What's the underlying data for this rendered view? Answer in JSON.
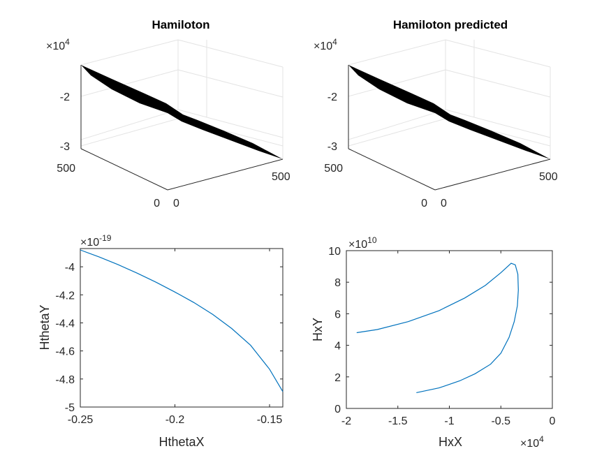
{
  "chart_data": [
    {
      "type": "surface",
      "title": "Hamiloton",
      "z_exponent": {
        "times": "×10",
        "power": "4"
      },
      "z_ticks": [
        {
          "value": -2,
          "label": "-2"
        },
        {
          "value": -3,
          "label": "-3"
        }
      ],
      "y_ticks": [
        {
          "value": 0,
          "label": "0"
        },
        {
          "value": 500,
          "label": "500"
        }
      ],
      "x_ticks": [
        {
          "value": 0,
          "label": "0"
        },
        {
          "value": 500,
          "label": "500"
        }
      ],
      "surface_color": "#000000"
    },
    {
      "type": "surface",
      "title": "Hamiloton predicted",
      "z_exponent": {
        "times": "×10",
        "power": "4"
      },
      "z_ticks": [
        {
          "value": -2,
          "label": "-2"
        },
        {
          "value": -3,
          "label": "-3"
        }
      ],
      "y_ticks": [
        {
          "value": 0,
          "label": "0"
        },
        {
          "value": 500,
          "label": "500"
        }
      ],
      "x_ticks": [
        {
          "value": 0,
          "label": "0"
        },
        {
          "value": 500,
          "label": "500"
        }
      ],
      "surface_color": "#000000"
    },
    {
      "type": "line",
      "xlabel": "HthetaX",
      "ylabel": "HthetaY",
      "xlim": [
        -0.25,
        -0.143
      ],
      "ylim": [
        -5.0,
        -3.87
      ],
      "y_exponent": {
        "times": "×10",
        "power": "-19"
      },
      "x_ticks": [
        {
          "value": -0.25,
          "label": "-0.25"
        },
        {
          "value": -0.2,
          "label": "-0.2"
        },
        {
          "value": -0.15,
          "label": "-0.15"
        }
      ],
      "y_ticks": [
        {
          "value": -4,
          "label": "-4"
        },
        {
          "value": -4.2,
          "label": "-4.2"
        },
        {
          "value": -4.4,
          "label": "-4.4"
        },
        {
          "value": -4.6,
          "label": "-4.6"
        },
        {
          "value": -4.8,
          "label": "-4.8"
        },
        {
          "value": -5,
          "label": "-5"
        }
      ],
      "series": [
        {
          "color": "#0072bd",
          "x": [
            -0.25,
            -0.24,
            -0.23,
            -0.22,
            -0.21,
            -0.2,
            -0.19,
            -0.18,
            -0.17,
            -0.16,
            -0.15,
            -0.143
          ],
          "y": [
            -3.88,
            -3.93,
            -3.985,
            -4.045,
            -4.11,
            -4.18,
            -4.255,
            -4.34,
            -4.44,
            -4.56,
            -4.73,
            -4.89
          ]
        }
      ]
    },
    {
      "type": "line",
      "xlabel": "HxX",
      "ylabel": "HxY",
      "xlim": [
        -2,
        0
      ],
      "ylim": [
        0,
        10
      ],
      "x_exponent": {
        "times": "×10",
        "power": "4"
      },
      "y_exponent": {
        "times": "×10",
        "power": "10"
      },
      "x_ticks": [
        {
          "value": -2,
          "label": "-2"
        },
        {
          "value": -1.5,
          "label": "-1.5"
        },
        {
          "value": -1,
          "label": "-1"
        },
        {
          "value": -0.5,
          "label": "-0.5"
        },
        {
          "value": 0,
          "label": "0"
        }
      ],
      "y_ticks": [
        {
          "value": 0,
          "label": "0"
        },
        {
          "value": 2,
          "label": "2"
        },
        {
          "value": 4,
          "label": "4"
        },
        {
          "value": 6,
          "label": "6"
        },
        {
          "value": 8,
          "label": "8"
        },
        {
          "value": 10,
          "label": "10"
        }
      ],
      "series": [
        {
          "color": "#0072bd",
          "x": [
            -1.32,
            -1.1,
            -0.9,
            -0.75,
            -0.6,
            -0.5,
            -0.42,
            -0.37,
            -0.34,
            -0.33,
            -0.335,
            -0.36,
            -0.4,
            -0.5,
            -0.65,
            -0.85,
            -1.1,
            -1.4,
            -1.7,
            -1.9
          ],
          "y": [
            1.0,
            1.3,
            1.75,
            2.2,
            2.8,
            3.5,
            4.5,
            5.5,
            6.5,
            7.5,
            8.5,
            9.1,
            9.2,
            8.6,
            7.8,
            7.0,
            6.2,
            5.5,
            5.0,
            4.8
          ]
        }
      ]
    }
  ]
}
